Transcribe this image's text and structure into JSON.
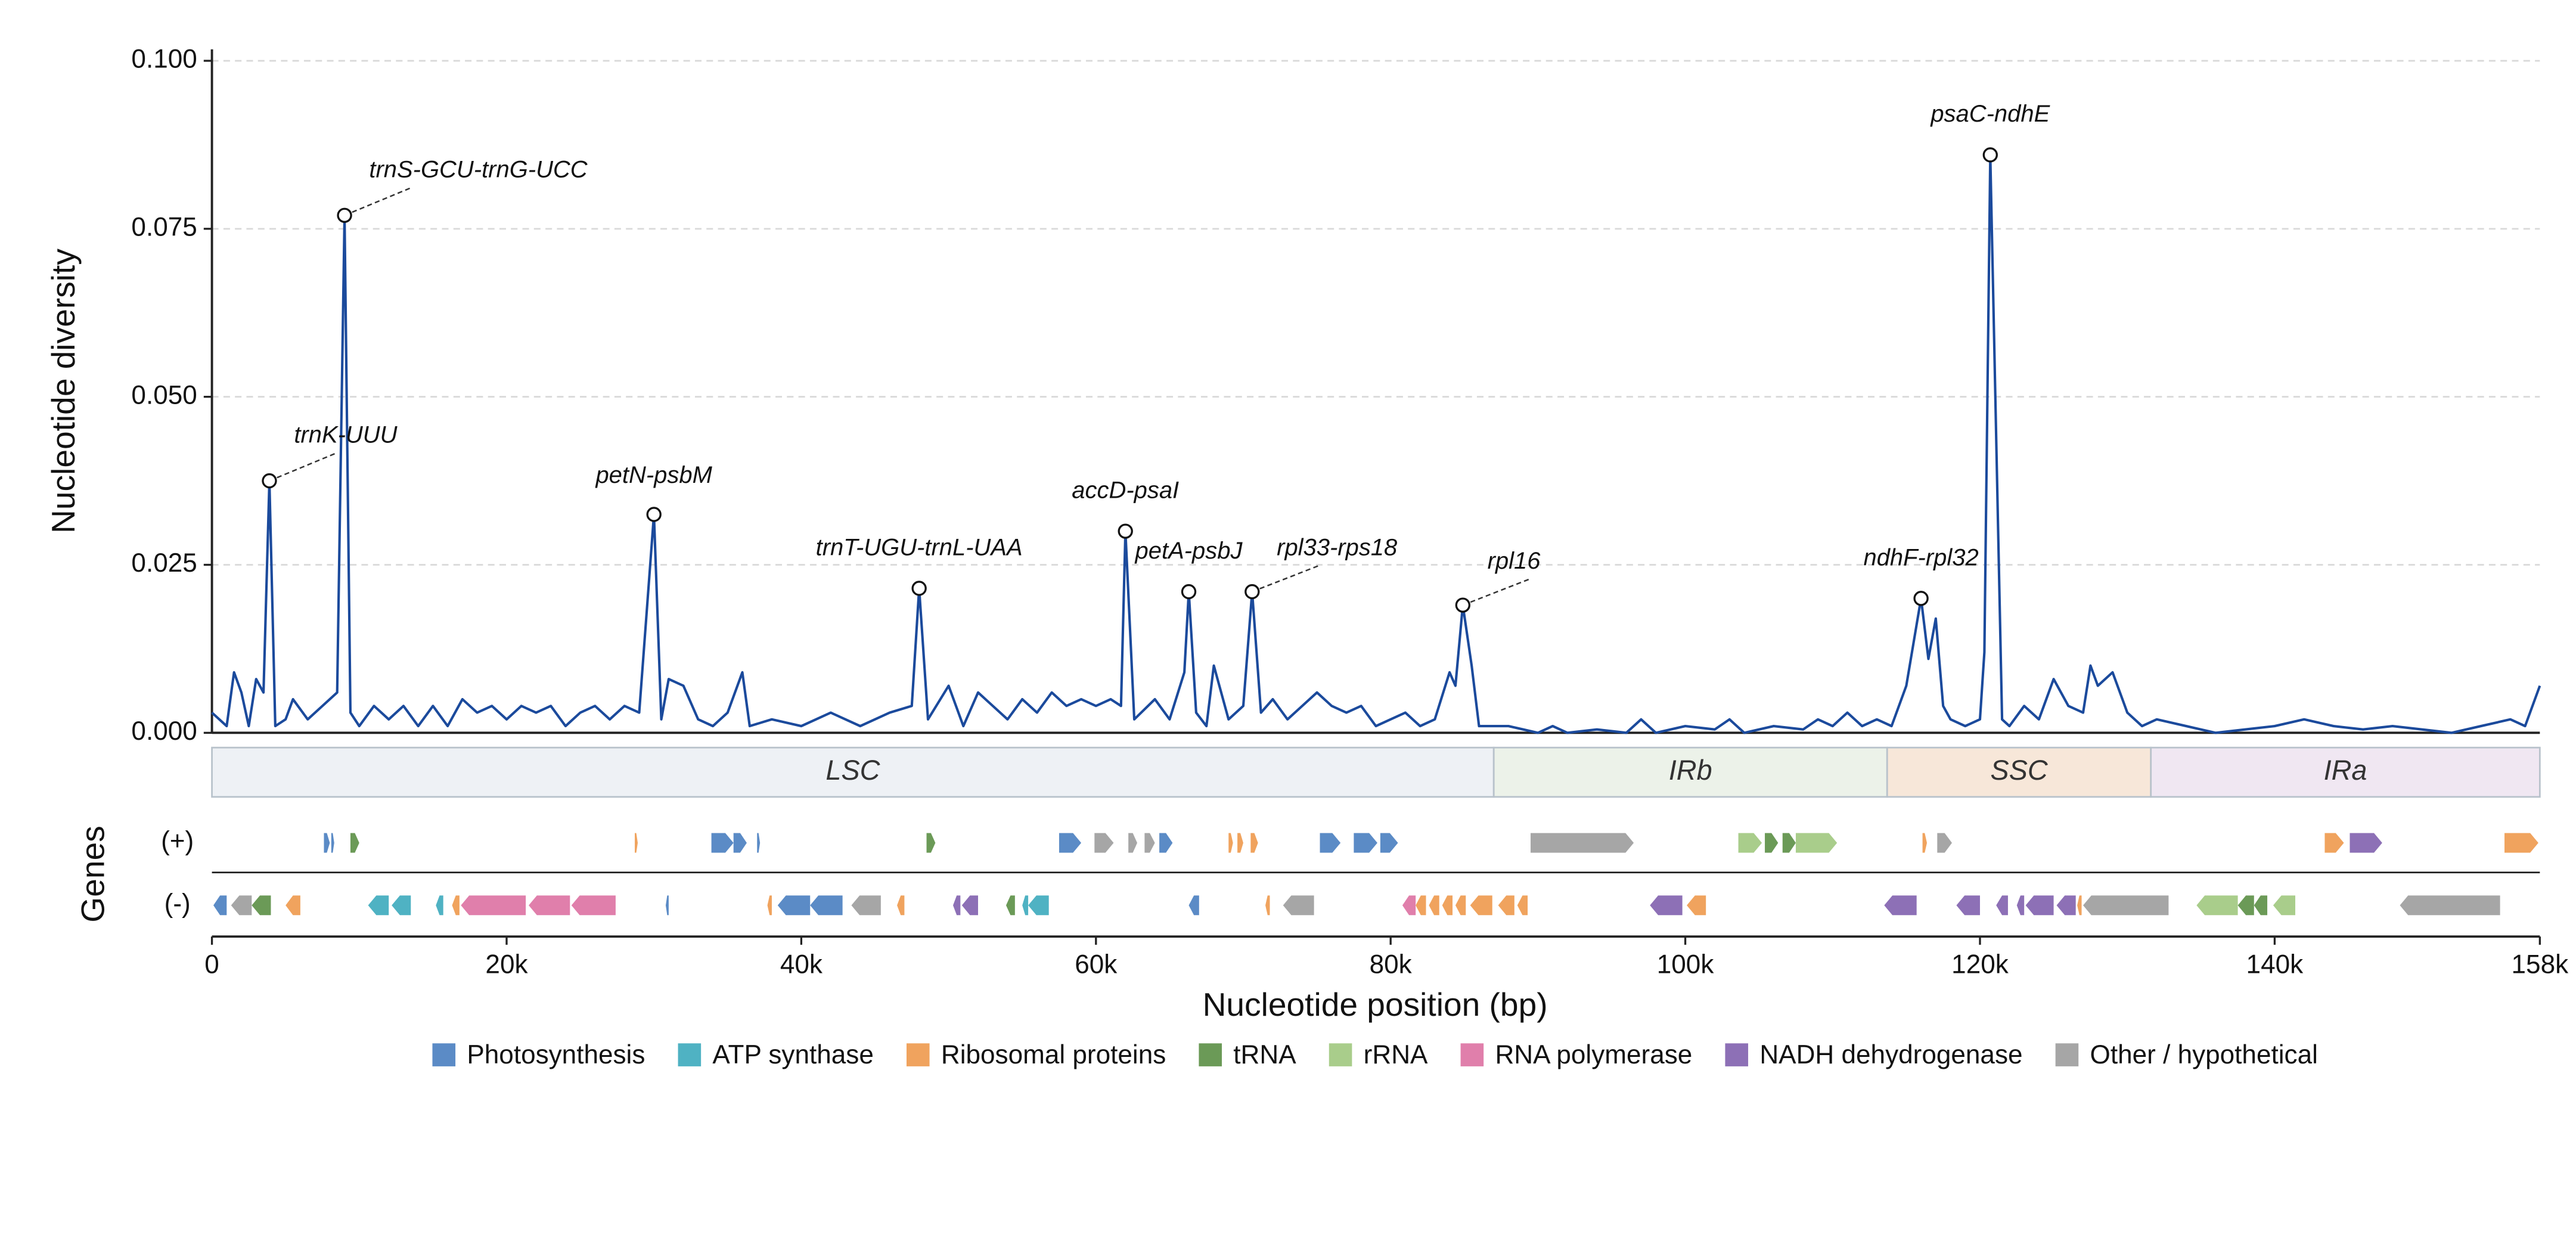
{
  "chart_data": {
    "type": "line",
    "ylabel": "Nucleotide diversity",
    "xlabel": "Nucleotide position (bp)",
    "ylim": [
      0,
      0.1
    ],
    "yticks": [
      {
        "value": 0,
        "label": "0.000"
      },
      {
        "value": 0.025,
        "label": "0.025"
      },
      {
        "value": 0.05,
        "label": "0.050"
      },
      {
        "value": 0.075,
        "label": "0.075"
      },
      {
        "value": 0.1,
        "label": "0.100"
      }
    ],
    "xlim": [
      0,
      158000
    ],
    "xticks": [
      0,
      {
        "value": 20000,
        "label": "20k"
      },
      {
        "value": 40000,
        "label": "40k"
      },
      {
        "value": 60000,
        "label": "60k"
      },
      {
        "value": 80000,
        "label": "80k"
      },
      {
        "value": 100000,
        "label": "100k"
      },
      {
        "value": 120000,
        "label": "120k"
      },
      {
        "value": 140000,
        "label": "140k"
      },
      {
        "value": 158000,
        "label": "158k"
      }
    ],
    "grid": true,
    "x": [
      0,
      1000,
      1500,
      2000,
      2500,
      3000,
      3500,
      3900,
      4300,
      5000,
      5500,
      6500,
      7500,
      8500,
      9000,
      9400,
      10000,
      11000,
      12000,
      13000,
      14000,
      15000,
      16000,
      17000,
      18000,
      19000,
      20000,
      21000,
      22000,
      23000,
      24000,
      25000,
      26000,
      27000,
      28000,
      29000,
      30000,
      30500,
      31000,
      32000,
      33000,
      34000,
      35000,
      36000,
      36500,
      38000,
      40000,
      42000,
      44000,
      46000,
      47500,
      48000,
      48600,
      50000,
      51000,
      52000,
      53000,
      54000,
      55000,
      56000,
      57000,
      58000,
      59000,
      60000,
      61000,
      61700,
      62000,
      62600,
      64000,
      65000,
      66000,
      66300,
      66800,
      67500,
      68000,
      69000,
      70000,
      70600,
      71200,
      72000,
      73000,
      74000,
      75000,
      76000,
      77000,
      78000,
      79000,
      80000,
      81000,
      82000,
      83000,
      84000,
      84400,
      84900,
      85500,
      86000,
      87000,
      88000,
      89000,
      90000,
      91000,
      92000,
      94000,
      96000,
      97000,
      98000,
      100000,
      102000,
      103000,
      104000,
      106000,
      108000,
      109000,
      110000,
      111000,
      112000,
      113000,
      114000,
      115000,
      116000,
      116500,
      117000,
      117500,
      118000,
      119000,
      120000,
      120300,
      120700,
      121500,
      122000,
      123000,
      124000,
      125000,
      126000,
      127000,
      127500,
      128000,
      129000,
      130000,
      131000,
      132000,
      134000,
      136000,
      138000,
      140000,
      142000,
      144000,
      146000,
      148000,
      150000,
      152000,
      154000,
      156000,
      157000,
      158000
    ],
    "series": [
      {
        "color": "#1b4a9c",
        "values": [
          0.003,
          0.001,
          0.009,
          0.006,
          0.001,
          0.008,
          0.006,
          0.0375,
          0.001,
          0.002,
          0.005,
          0.002,
          0.004,
          0.006,
          0.077,
          0.003,
          0.001,
          0.004,
          0.002,
          0.004,
          0.001,
          0.004,
          0.001,
          0.005,
          0.003,
          0.004,
          0.002,
          0.004,
          0.003,
          0.004,
          0.001,
          0.003,
          0.004,
          0.002,
          0.004,
          0.003,
          0.0325,
          0.002,
          0.008,
          0.007,
          0.002,
          0.001,
          0.003,
          0.009,
          0.001,
          0.002,
          0.001,
          0.003,
          0.001,
          0.003,
          0.004,
          0.0215,
          0.002,
          0.007,
          0.001,
          0.006,
          0.004,
          0.002,
          0.005,
          0.003,
          0.006,
          0.004,
          0.005,
          0.004,
          0.005,
          0.004,
          0.03,
          0.002,
          0.005,
          0.002,
          0.009,
          0.021,
          0.003,
          0.001,
          0.01,
          0.002,
          0.004,
          0.021,
          0.003,
          0.005,
          0.002,
          0.004,
          0.006,
          0.004,
          0.003,
          0.004,
          0.001,
          0.002,
          0.003,
          0.001,
          0.002,
          0.009,
          0.007,
          0.019,
          0.01,
          0.001,
          0.001,
          0.001,
          0.0005,
          0,
          0.001,
          0,
          0.0005,
          0,
          0.002,
          0,
          0.001,
          0.0005,
          0.002,
          0,
          0.001,
          0.0005,
          0.002,
          0.001,
          0.003,
          0.001,
          0.002,
          0.001,
          0.007,
          0.02,
          0.011,
          0.017,
          0.004,
          0.002,
          0.001,
          0.002,
          0.012,
          0.086,
          0.002,
          0.001,
          0.004,
          0.002,
          0.008,
          0.004,
          0.003,
          0.01,
          0.007,
          0.009,
          0.003,
          0.001,
          0.002,
          0.001,
          0,
          0.0005,
          0.001,
          0.002,
          0.001,
          0.0005,
          0.001,
          0.0005,
          0,
          0.001,
          0.002,
          0.001,
          0.007
        ]
      }
    ],
    "annotations": [
      {
        "text": "trnK-UUU",
        "x": 3900,
        "y": 0.0375
      },
      {
        "text": "trnS-GCU-trnG-UCC",
        "x": 9000,
        "y": 0.077
      },
      {
        "text": "petN-psbM",
        "x": 30000,
        "y": 0.0325
      },
      {
        "text": "trnT-UGU-trnL-UAA",
        "x": 48000,
        "y": 0.0215
      },
      {
        "text": "accD-psaI",
        "x": 62000,
        "y": 0.03
      },
      {
        "text": "petA-psbJ",
        "x": 66300,
        "y": 0.021
      },
      {
        "text": "rpl33-rps18",
        "x": 70600,
        "y": 0.021
      },
      {
        "text": "rpl16",
        "x": 84900,
        "y": 0.019
      },
      {
        "text": "ndhF-rpl32",
        "x": 116000,
        "y": 0.02
      },
      {
        "text": "psaC-ndhE",
        "x": 120700,
        "y": 0.086
      }
    ],
    "regions": [
      {
        "name": "LSC",
        "start": 0,
        "end": 87000,
        "color": "#eef1f5"
      },
      {
        "name": "IRb",
        "start": 87000,
        "end": 113700,
        "color": "#ecf2e9"
      },
      {
        "name": "SSC",
        "start": 113700,
        "end": 131600,
        "color": "#f7e7d9"
      },
      {
        "name": "IRa",
        "start": 131600,
        "end": 158000,
        "color": "#f0e7f2"
      }
    ],
    "gene_track_label": "Genes",
    "gene_categories": [
      {
        "name": "Photosynthesis",
        "color": "#5b8bc6"
      },
      {
        "name": "ATP synthase",
        "color": "#4fb2c3"
      },
      {
        "name": "Ribosomal proteins",
        "color": "#f0a35e"
      },
      {
        "name": "tRNA",
        "color": "#6b9a57"
      },
      {
        "name": "rRNA",
        "color": "#a9cd8b"
      },
      {
        "name": "RNA polymerase",
        "color": "#e07fab"
      },
      {
        "name": "NADH dehydrogenase",
        "color": "#8d70b6"
      },
      {
        "name": "Other / hypothetical",
        "color": "#a6a6a6"
      }
    ],
    "gene_tracks": [
      {
        "label": "(+)",
        "genes": [
          {
            "start": 7600,
            "end": 8000,
            "category": "Photosynthesis"
          },
          {
            "start": 8100,
            "end": 8300,
            "category": "Photosynthesis"
          },
          {
            "start": 9400,
            "end": 10000,
            "category": "tRNA"
          },
          {
            "start": 28700,
            "end": 28900,
            "category": "Ribosomal proteins"
          },
          {
            "start": 33900,
            "end": 35400,
            "category": "Photosynthesis"
          },
          {
            "start": 35400,
            "end": 36300,
            "category": "Photosynthesis"
          },
          {
            "start": 37000,
            "end": 37200,
            "category": "Photosynthesis"
          },
          {
            "start": 48500,
            "end": 49100,
            "category": "tRNA"
          },
          {
            "start": 57500,
            "end": 59000,
            "category": "Photosynthesis"
          },
          {
            "start": 59900,
            "end": 61200,
            "category": "Other / hypothetical"
          },
          {
            "start": 62200,
            "end": 62800,
            "category": "Other / hypothetical"
          },
          {
            "start": 63300,
            "end": 64000,
            "category": "Other / hypothetical"
          },
          {
            "start": 64300,
            "end": 65200,
            "category": "Photosynthesis"
          },
          {
            "start": 69000,
            "end": 69300,
            "category": "Ribosomal proteins"
          },
          {
            "start": 69600,
            "end": 70000,
            "category": "Ribosomal proteins"
          },
          {
            "start": 70500,
            "end": 71000,
            "category": "Ribosomal proteins"
          },
          {
            "start": 75200,
            "end": 76600,
            "category": "Photosynthesis"
          },
          {
            "start": 77500,
            "end": 79100,
            "category": "Photosynthesis"
          },
          {
            "start": 79300,
            "end": 80500,
            "category": "Photosynthesis"
          },
          {
            "start": 89500,
            "end": 96500,
            "category": "Other / hypothetical"
          },
          {
            "start": 103600,
            "end": 105200,
            "category": "rRNA"
          },
          {
            "start": 105400,
            "end": 106300,
            "category": "tRNA"
          },
          {
            "start": 106600,
            "end": 107500,
            "category": "tRNA"
          },
          {
            "start": 107500,
            "end": 110300,
            "category": "rRNA"
          },
          {
            "start": 116100,
            "end": 116400,
            "category": "Ribosomal proteins"
          },
          {
            "start": 117100,
            "end": 118100,
            "category": "Other / hypothetical"
          },
          {
            "start": 143400,
            "end": 144700,
            "category": "Ribosomal proteins"
          },
          {
            "start": 145100,
            "end": 147300,
            "category": "NADH dehydrogenase"
          },
          {
            "start": 155600,
            "end": 157900,
            "category": "Ribosomal proteins"
          }
        ]
      },
      {
        "label": "(-)",
        "genes": [
          {
            "start": 100,
            "end": 1000,
            "category": "Photosynthesis"
          },
          {
            "start": 1300,
            "end": 2700,
            "category": "Other / hypothetical"
          },
          {
            "start": 2700,
            "end": 4000,
            "category": "tRNA"
          },
          {
            "start": 5000,
            "end": 6000,
            "category": "Ribosomal proteins"
          },
          {
            "start": 10600,
            "end": 12000,
            "category": "ATP synthase"
          },
          {
            "start": 12200,
            "end": 13500,
            "category": "ATP synthase"
          },
          {
            "start": 15200,
            "end": 15700,
            "category": "ATP synthase"
          },
          {
            "start": 16300,
            "end": 16800,
            "category": "Ribosomal proteins"
          },
          {
            "start": 16900,
            "end": 21300,
            "category": "RNA polymerase"
          },
          {
            "start": 21500,
            "end": 24300,
            "category": "RNA polymerase"
          },
          {
            "start": 24400,
            "end": 27400,
            "category": "RNA polymerase"
          },
          {
            "start": 30800,
            "end": 31000,
            "category": "Photosynthesis"
          },
          {
            "start": 37700,
            "end": 38000,
            "category": "Ribosomal proteins"
          },
          {
            "start": 38400,
            "end": 40600,
            "category": "Photosynthesis"
          },
          {
            "start": 40600,
            "end": 42800,
            "category": "Photosynthesis"
          },
          {
            "start": 43400,
            "end": 45400,
            "category": "Other / hypothetical"
          },
          {
            "start": 46500,
            "end": 47000,
            "category": "Ribosomal proteins"
          },
          {
            "start": 50300,
            "end": 50800,
            "category": "NADH dehydrogenase"
          },
          {
            "start": 50900,
            "end": 52000,
            "category": "NADH dehydrogenase"
          },
          {
            "start": 53900,
            "end": 54500,
            "category": "tRNA"
          },
          {
            "start": 55000,
            "end": 55400,
            "category": "ATP synthase"
          },
          {
            "start": 55400,
            "end": 56800,
            "category": "ATP synthase"
          },
          {
            "start": 66300,
            "end": 67000,
            "category": "Photosynthesis"
          },
          {
            "start": 71500,
            "end": 71800,
            "category": "Ribosomal proteins"
          },
          {
            "start": 72700,
            "end": 74800,
            "category": "Other / hypothetical"
          },
          {
            "start": 80800,
            "end": 81700,
            "category": "RNA polymerase"
          },
          {
            "start": 81700,
            "end": 82400,
            "category": "Ribosomal proteins"
          },
          {
            "start": 82600,
            "end": 83300,
            "category": "Ribosomal proteins"
          },
          {
            "start": 83500,
            "end": 84200,
            "category": "Ribosomal proteins"
          },
          {
            "start": 84400,
            "end": 85100,
            "category": "Ribosomal proteins"
          },
          {
            "start": 85400,
            "end": 86900,
            "category": "Ribosomal proteins"
          },
          {
            "start": 87300,
            "end": 88400,
            "category": "Ribosomal proteins"
          },
          {
            "start": 88600,
            "end": 89300,
            "category": "Ribosomal proteins"
          },
          {
            "start": 97600,
            "end": 99800,
            "category": "NADH dehydrogenase"
          },
          {
            "start": 100100,
            "end": 101400,
            "category": "Ribosomal proteins"
          },
          {
            "start": 113500,
            "end": 115700,
            "category": "NADH dehydrogenase"
          },
          {
            "start": 118400,
            "end": 120000,
            "category": "NADH dehydrogenase"
          },
          {
            "start": 121100,
            "end": 121900,
            "category": "NADH dehydrogenase"
          },
          {
            "start": 122500,
            "end": 123000,
            "category": "NADH dehydrogenase"
          },
          {
            "start": 123100,
            "end": 125000,
            "category": "NADH dehydrogenase"
          },
          {
            "start": 125200,
            "end": 126500,
            "category": "NADH dehydrogenase"
          },
          {
            "start": 126600,
            "end": 126900,
            "category": "Ribosomal proteins"
          },
          {
            "start": 127000,
            "end": 132800,
            "category": "Other / hypothetical"
          },
          {
            "start": 134700,
            "end": 137500,
            "category": "rRNA"
          },
          {
            "start": 137500,
            "end": 138600,
            "category": "tRNA"
          },
          {
            "start": 138600,
            "end": 139500,
            "category": "tRNA"
          },
          {
            "start": 139900,
            "end": 141400,
            "category": "rRNA"
          },
          {
            "start": 148500,
            "end": 155300,
            "category": "Other / hypothetical"
          }
        ]
      }
    ]
  }
}
